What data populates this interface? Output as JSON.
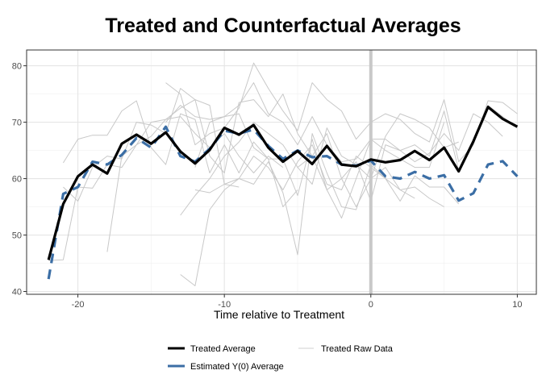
{
  "chart_data": {
    "type": "line",
    "title": "Treated and Counterfactual Averages",
    "xlabel": "Time relative to Treatment",
    "ylabel": "",
    "xlim": [
      -23.5,
      11.3
    ],
    "ylim": [
      39.5,
      82.8
    ],
    "x_ticks": [
      -20,
      -10,
      0,
      10
    ],
    "x_tick_labels": [
      "-20",
      "-10",
      "0",
      "10"
    ],
    "y_ticks": [
      40,
      50,
      60,
      70,
      80
    ],
    "y_tick_labels": [
      "40",
      "50",
      "60",
      "70",
      "80"
    ],
    "grid": true,
    "treatment_line_x": 0,
    "legend_position": "bottom",
    "colors": {
      "treated_average": "#000000",
      "estimated_y0": "#3b6ea5",
      "raw": "#c8c8c8",
      "treatment_band": "#c8c8c8"
    },
    "legend": [
      {
        "name": "Treated Average",
        "key": "treated_average"
      },
      {
        "name": "Treated Raw Data",
        "key": "raw"
      },
      {
        "name": "Estimated Y(0) Average",
        "key": "estimated_y0"
      }
    ],
    "x": [
      -22,
      -21,
      -20,
      -19,
      -18,
      -17,
      -16,
      -15,
      -14,
      -13,
      -12,
      -11,
      -10,
      -9,
      -8,
      -7,
      -6,
      -5,
      -4,
      -3,
      -2,
      -1,
      0,
      1,
      2,
      3,
      4,
      5,
      6,
      7,
      8,
      9,
      10
    ],
    "series": [
      {
        "name": "Treated Average",
        "key": "treated_average",
        "style": "solid",
        "values": [
          45.6,
          55.5,
          60.4,
          62.5,
          60.9,
          66.2,
          67.8,
          66.2,
          68.2,
          64.8,
          62.7,
          65.1,
          69.0,
          67.8,
          69.5,
          65.5,
          63.0,
          64.9,
          62.6,
          65.8,
          62.5,
          62.2,
          63.4,
          62.9,
          63.3,
          64.9,
          63.3,
          65.5,
          61.3,
          66.6,
          72.7,
          70.6,
          69.2
        ]
      },
      {
        "name": "Estimated Y(0) Average",
        "key": "estimated_y0",
        "style": "dashed",
        "values": [
          42.2,
          57.3,
          58.5,
          63.0,
          62.5,
          64.2,
          67.2,
          65.5,
          69.2,
          64.0,
          63.0,
          65.3,
          68.5,
          68.0,
          68.7,
          65.8,
          63.5,
          65.0,
          63.8,
          64.0,
          62.5,
          62.3,
          63.2,
          60.4,
          60.0,
          61.2,
          60.0,
          60.6,
          56.1,
          57.4,
          62.5,
          63.1,
          60.4
        ]
      }
    ],
    "raw_series": [
      {
        "start": -22,
        "values": [
          45.5,
          45.6,
          58.5,
          58.3,
          62.5,
          62.0,
          66.0,
          67.5,
          70.5,
          71.0,
          68.0,
          65.5,
          68.0,
          64.0,
          61.0,
          64.0,
          62.0
        ]
      },
      {
        "start": -21,
        "values": [
          62.8,
          67.0,
          67.7,
          67.7,
          72.0,
          73.8,
          65.5,
          62.5,
          71.5,
          70.5,
          61.0,
          66.0,
          61.0,
          66.5,
          63.5,
          55.0,
          58.0
        ]
      },
      {
        "start": -21,
        "values": [
          58.5,
          56.0,
          62.0,
          64.0,
          63.5,
          70.0,
          69.5,
          68.0,
          76.0,
          74.0,
          73.0,
          59.0,
          58.5
        ]
      },
      {
        "start": -18,
        "values": [
          47.0,
          64.0,
          66.0,
          70.0,
          70.5,
          72.5,
          74.0,
          64.0,
          61.0,
          73.5,
          74.0,
          71.0,
          75.0,
          68.0,
          64.0,
          68.0,
          60.0,
          55.0,
          60.0,
          62.0,
          58.0,
          56.5
        ]
      },
      {
        "start": -14,
        "values": [
          77.0,
          75.0,
          66.0,
          68.0,
          69.0,
          72.5,
          80.5,
          76.0,
          72.0,
          68.5,
          77.0,
          74.0,
          72.0,
          67.0,
          70.0,
          71.5,
          70.5,
          68.0,
          66.5,
          74.0,
          63.0,
          66.0,
          73.8,
          73.5,
          71.5
        ]
      },
      {
        "start": -14,
        "values": [
          70.0,
          73.0,
          71.0,
          70.5,
          71.0,
          73.0,
          77.0,
          71.5,
          70.0,
          66.0,
          71.0,
          66.0,
          63.0,
          63.5,
          67.0,
          67.0,
          65.0,
          66.0,
          64.0,
          72.0,
          61.5,
          67.0,
          73.0,
          71.0,
          69.0
        ]
      },
      {
        "start": -13,
        "values": [
          53.5,
          57.0,
          60.0,
          64.0,
          66.5,
          70.0,
          68.0,
          66.0,
          62.0,
          64.0,
          58.0,
          60.0,
          63.0,
          56.0,
          66.0,
          65.0,
          63.0,
          64.5,
          68.0,
          65.0,
          71.5,
          70.0,
          67.5
        ]
      },
      {
        "start": -13,
        "values": [
          43.0,
          41.0,
          54.5,
          58.0,
          60.0,
          64.0,
          62.0,
          58.0,
          63.0,
          66.0,
          59.0,
          58.0,
          64.0,
          62.0,
          60.0,
          58.0,
          58.5,
          56.5,
          55.0
        ]
      },
      {
        "start": -12,
        "values": [
          58.0,
          57.5,
          59.0,
          60.0,
          59.0,
          63.0,
          57.5,
          46.5,
          68.0,
          61.0,
          55.0,
          54.5,
          62.5,
          60.0,
          56.0,
          60.5,
          58.5,
          58.5,
          55.5
        ]
      },
      {
        "start": -12,
        "values": [
          62.0,
          70.0,
          71.0,
          71.5,
          65.5,
          63.5,
          63.5,
          57.0,
          67.0,
          58.0,
          53.0,
          60.0,
          67.0,
          65.0,
          63.5,
          62.0,
          62.0,
          70.0
        ]
      },
      {
        "start": -5,
        "values": [
          62.0,
          59.0,
          69.0,
          64.0,
          62.5,
          60.0,
          67.5,
          71.5,
          70.5,
          69.0,
          65.5,
          66.5
        ]
      }
    ]
  }
}
